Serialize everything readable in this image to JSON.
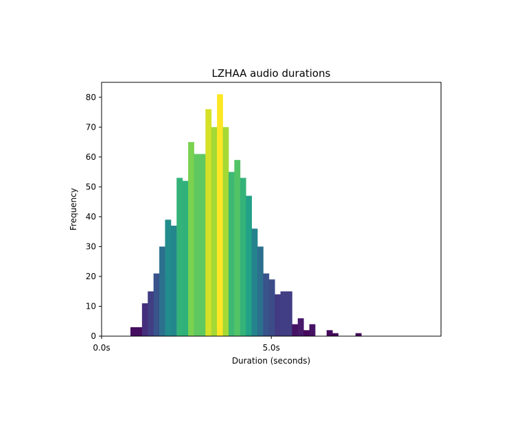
{
  "chart_data": {
    "type": "bar",
    "title": "LZHAA audio durations",
    "xlabel": "Duration (seconds)",
    "ylabel": "Frequency",
    "xlim": [
      0,
      10
    ],
    "ylim": [
      0,
      85
    ],
    "x_ticks": [
      0,
      5
    ],
    "x_tick_labels": [
      "0.0s",
      "5.0s"
    ],
    "y_ticks": [
      0,
      10,
      20,
      30,
      40,
      50,
      60,
      70,
      80
    ],
    "y_tick_labels": [
      "0",
      "10",
      "20",
      "30",
      "40",
      "50",
      "60",
      "70",
      "80"
    ],
    "grid": false,
    "legend": "none",
    "colormap": "viridis",
    "bin_width": 0.17,
    "bin_start": 0.85,
    "values": [
      3,
      3,
      11,
      15,
      21,
      30,
      39,
      37,
      53,
      52,
      65,
      61,
      61,
      76,
      70,
      81,
      70,
      55,
      59,
      53,
      47,
      36,
      30,
      21,
      19,
      14,
      15,
      15,
      4,
      6,
      2,
      4,
      0,
      0,
      2,
      1,
      0,
      0,
      0,
      1
    ]
  }
}
